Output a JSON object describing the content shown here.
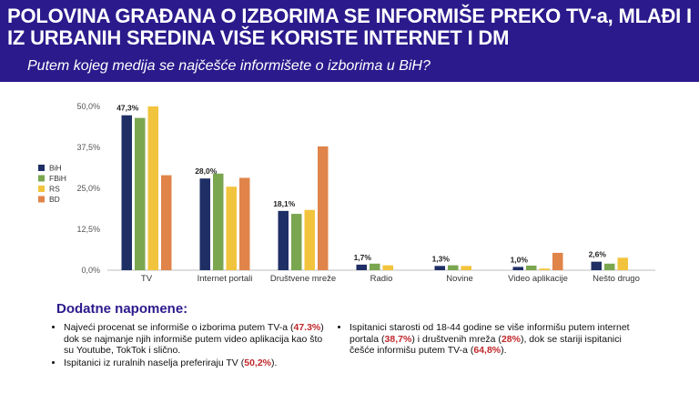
{
  "header": {
    "title": "POLOVINA GRAĐANA O IZBORIMA SE INFORMIŠE PREKO TV-a, MLAĐI I IZ URBANIH SREDINA VIŠE KORISTE INTERNET I DM",
    "subtitle": "Putem kojeg medija se najčešće informišete o izborima u BiH?"
  },
  "chart_data": {
    "type": "bar",
    "categories": [
      "TV",
      "Internet portali",
      "Društvene mreže",
      "Radio",
      "Novine",
      "Video aplikacije",
      "Nešto drugo"
    ],
    "series": [
      {
        "name": "BiH",
        "color": "#1f2f66",
        "values": [
          47.3,
          28.0,
          18.1,
          1.7,
          1.3,
          1.0,
          2.6
        ]
      },
      {
        "name": "FBiH",
        "color": "#7aa650",
        "values": [
          46.5,
          29.5,
          17.2,
          2.0,
          1.5,
          1.4,
          2.0
        ]
      },
      {
        "name": "RS",
        "color": "#f2c43d",
        "values": [
          50.0,
          25.5,
          18.4,
          1.5,
          1.3,
          0.5,
          3.8
        ]
      },
      {
        "name": "BD",
        "color": "#e0844a",
        "values": [
          29.0,
          28.2,
          37.8,
          0.0,
          0.0,
          5.3,
          0.0
        ]
      }
    ],
    "data_labels": [
      "47,3%",
      "28,0%",
      "18,1%",
      "1,7%",
      "1,3%",
      "1,0%",
      "2,6%"
    ],
    "y_ticks": [
      "0,0%",
      "12,5%",
      "25,0%",
      "37,5%",
      "50,0%"
    ],
    "ylim": [
      0,
      50
    ],
    "grid": false,
    "legend_position": "left"
  },
  "notes": {
    "title": "Dodatne napomene:",
    "left": [
      {
        "t1": "Najveći procenat se informiše o izborima putem TV-a (",
        "hl1": "47.3%",
        "t2": ") dok se najmanje njih informiše putem video aplikacija kao što su Youtube, TokTok i slično."
      },
      {
        "t1": "Ispitanici iz ruralnih naselja preferiraju TV (",
        "hl1": "50,2%",
        "t2": ")."
      }
    ],
    "right": [
      {
        "t1": "Ispitanici starosti od 18-44 godine se više informišu putem internet portala (",
        "hl1": "38,7%",
        "t2": ") i društvenih mreža (",
        "hl2": "28%",
        "t3": "), dok se stariji ispitanici češće informišu putem TV-a (",
        "hl3": "64,8%",
        "t4": ")."
      }
    ]
  }
}
